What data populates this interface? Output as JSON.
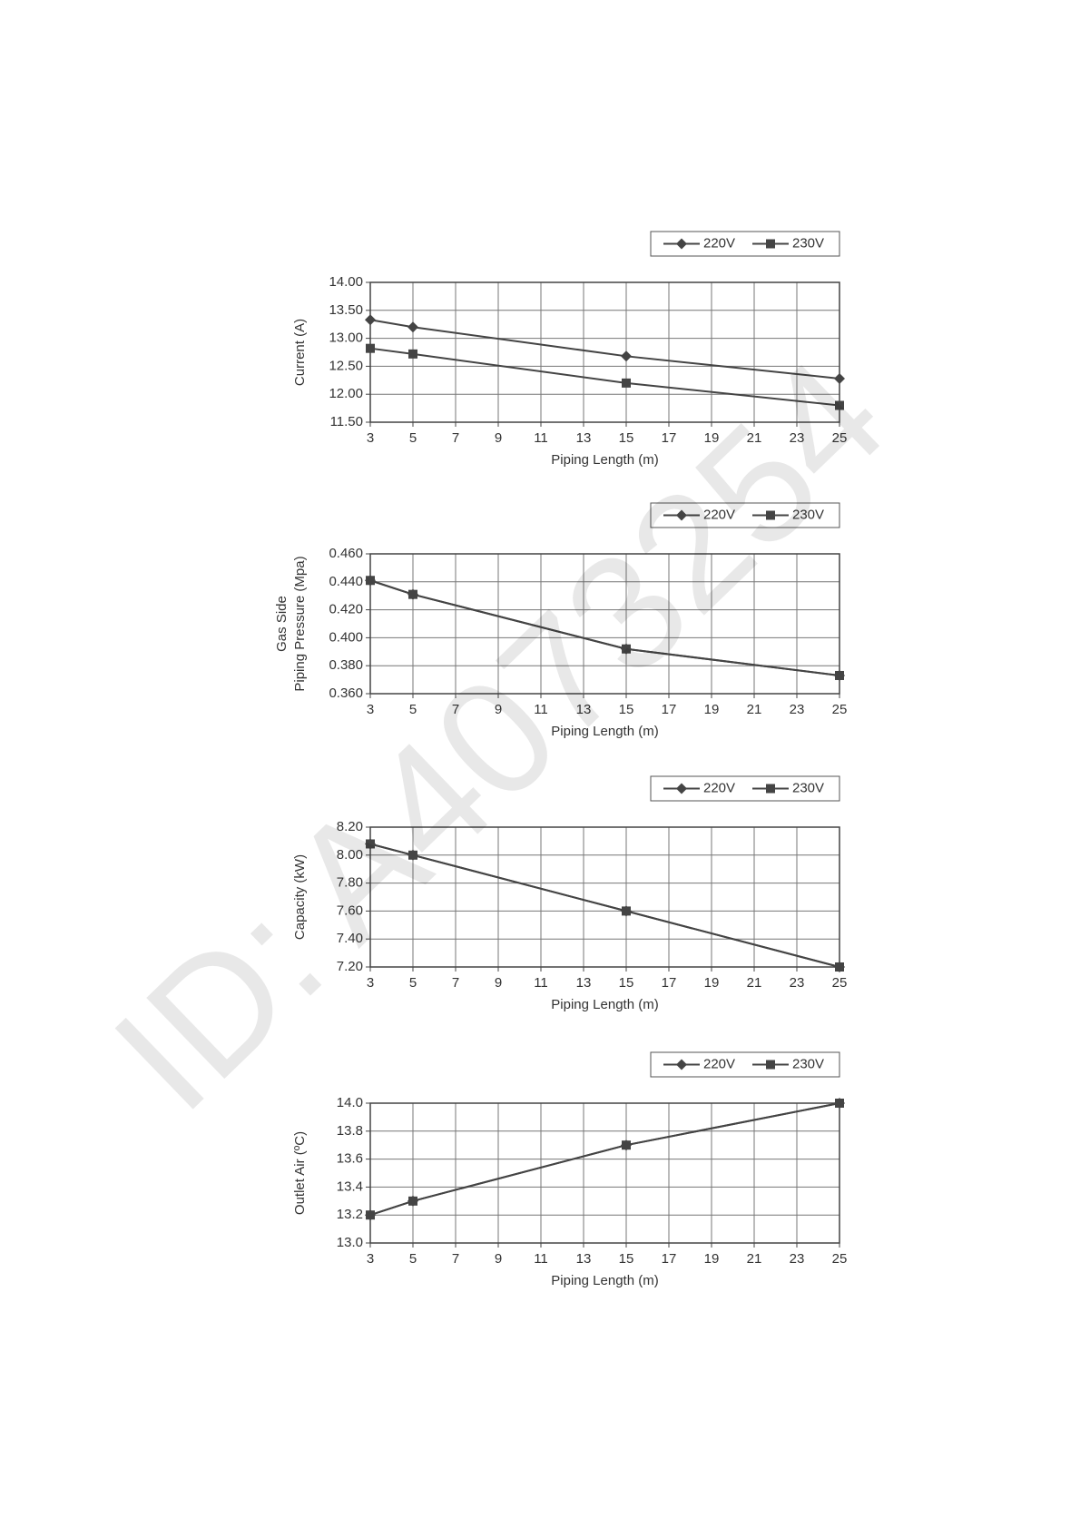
{
  "watermark": "ID: A4073254",
  "chart_data": [
    {
      "type": "line",
      "ylabel": "Current (A)",
      "xlabel": "Piping Length (m)",
      "x": [
        3,
        5,
        15,
        25
      ],
      "xlim": [
        3,
        25
      ],
      "xticks": [
        3,
        5,
        7,
        9,
        11,
        13,
        15,
        17,
        19,
        21,
        23,
        25
      ],
      "ylim": [
        11.5,
        14.0
      ],
      "yticks": [
        {
          "value": 11.5,
          "label": "11.50"
        },
        {
          "value": 12.0,
          "label": "12.00"
        },
        {
          "value": 12.5,
          "label": "12.50"
        },
        {
          "value": 13.0,
          "label": "13.00"
        },
        {
          "value": 13.5,
          "label": "13.50"
        },
        {
          "value": 14.0,
          "label": "14.00"
        }
      ],
      "grid": true,
      "legend": "top-right",
      "series": [
        {
          "name": "220V",
          "color": "#444444",
          "marker": "diamond",
          "values": [
            13.33,
            13.2,
            12.68,
            12.28
          ]
        },
        {
          "name": "230V",
          "color": "#444444",
          "marker": "square",
          "values": [
            12.82,
            12.72,
            12.2,
            11.8
          ]
        }
      ]
    },
    {
      "type": "line",
      "ylabel": [
        "Gas Side",
        "Piping Pressure (Mpa)"
      ],
      "xlabel": "Piping Length (m)",
      "x": [
        3,
        5,
        15,
        25
      ],
      "xlim": [
        3,
        25
      ],
      "xticks": [
        3,
        5,
        7,
        9,
        11,
        13,
        15,
        17,
        19,
        21,
        23,
        25
      ],
      "ylim": [
        0.36,
        0.46
      ],
      "yticks": [
        {
          "value": 0.36,
          "label": "0.360"
        },
        {
          "value": 0.38,
          "label": "0.380"
        },
        {
          "value": 0.4,
          "label": "0.400"
        },
        {
          "value": 0.42,
          "label": "0.420"
        },
        {
          "value": 0.44,
          "label": "0.440"
        },
        {
          "value": 0.46,
          "label": "0.460"
        }
      ],
      "grid": true,
      "legend": "top-right",
      "series": [
        {
          "name": "220V",
          "color": "#444444",
          "marker": "diamond",
          "values": [
            0.441,
            0.431,
            0.392,
            0.373
          ]
        },
        {
          "name": "230V",
          "color": "#444444",
          "marker": "square",
          "values": [
            0.441,
            0.431,
            0.392,
            0.373
          ]
        }
      ]
    },
    {
      "type": "line",
      "ylabel": "Capacity (kW)",
      "xlabel": "Piping Length (m)",
      "x": [
        3,
        5,
        15,
        25
      ],
      "xlim": [
        3,
        25
      ],
      "xticks": [
        3,
        5,
        7,
        9,
        11,
        13,
        15,
        17,
        19,
        21,
        23,
        25
      ],
      "ylim": [
        7.2,
        8.2
      ],
      "yticks": [
        {
          "value": 7.2,
          "label": "7.20"
        },
        {
          "value": 7.4,
          "label": "7.40"
        },
        {
          "value": 7.6,
          "label": "7.60"
        },
        {
          "value": 7.8,
          "label": "7.80"
        },
        {
          "value": 8.0,
          "label": "8.00"
        },
        {
          "value": 8.2,
          "label": "8.20"
        }
      ],
      "grid": true,
      "legend": "top-right",
      "series": [
        {
          "name": "220V",
          "color": "#444444",
          "marker": "diamond",
          "values": [
            8.08,
            8.0,
            7.6,
            7.2
          ]
        },
        {
          "name": "230V",
          "color": "#444444",
          "marker": "square",
          "values": [
            8.08,
            8.0,
            7.6,
            7.2
          ]
        }
      ]
    },
    {
      "type": "line",
      "ylabel": "Outlet Air (ºC)",
      "xlabel": "Piping Length (m)",
      "x": [
        3,
        5,
        15,
        25
      ],
      "xlim": [
        3,
        25
      ],
      "xticks": [
        3,
        5,
        7,
        9,
        11,
        13,
        15,
        17,
        19,
        21,
        23,
        25
      ],
      "ylim": [
        13.0,
        14.0
      ],
      "yticks": [
        {
          "value": 13.0,
          "label": "13.0"
        },
        {
          "value": 13.2,
          "label": "13.2"
        },
        {
          "value": 13.4,
          "label": "13.4"
        },
        {
          "value": 13.6,
          "label": "13.6"
        },
        {
          "value": 13.8,
          "label": "13.8"
        },
        {
          "value": 14.0,
          "label": "14.0"
        }
      ],
      "grid": true,
      "legend": "top-right",
      "series": [
        {
          "name": "220V",
          "color": "#444444",
          "marker": "diamond",
          "values": [
            13.2,
            13.3,
            13.7,
            14.0
          ]
        },
        {
          "name": "230V",
          "color": "#444444",
          "marker": "square",
          "values": [
            13.2,
            13.3,
            13.7,
            14.0
          ]
        }
      ]
    }
  ]
}
